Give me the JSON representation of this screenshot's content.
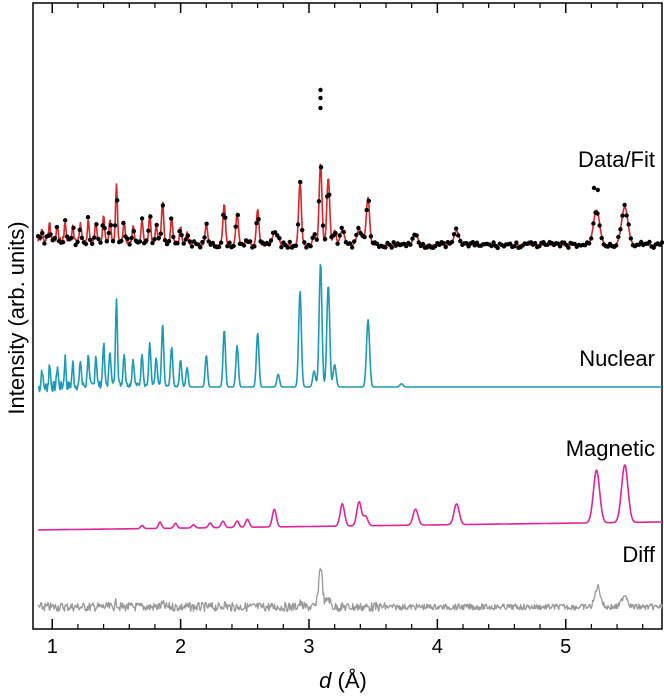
{
  "chart_data": {
    "type": "line",
    "xlabel_italic": "d",
    "xlabel_rest": " (Å)",
    "ylabel": "Intensity (arb. units)",
    "xlim": [
      0.85,
      5.75
    ],
    "x_ticks": [
      1,
      2,
      3,
      4,
      5
    ],
    "x_tick_labels": [
      "1",
      "2",
      "3",
      "4",
      "5"
    ],
    "y_ticks_visible": false,
    "colors": {
      "data": "#000000",
      "fit": "#d62728",
      "nuclear": "#1a9bb5",
      "magnetic": "#e0249a",
      "diff": "#999999"
    },
    "peaks": {
      "nuclear": [
        [
          0.92,
          0.12
        ],
        [
          0.98,
          0.15
        ],
        [
          1.04,
          0.13
        ],
        [
          1.1,
          0.18
        ],
        [
          1.16,
          0.14
        ],
        [
          1.22,
          0.16
        ],
        [
          1.28,
          0.2
        ],
        [
          1.34,
          0.19
        ],
        [
          1.4,
          0.26
        ],
        [
          1.45,
          0.22
        ],
        [
          1.5,
          0.55
        ],
        [
          1.56,
          0.2
        ],
        [
          1.63,
          0.16
        ],
        [
          1.7,
          0.2
        ],
        [
          1.76,
          0.27
        ],
        [
          1.81,
          0.17
        ],
        [
          1.86,
          0.39
        ],
        [
          1.93,
          0.25
        ],
        [
          2.0,
          0.17
        ],
        [
          2.05,
          0.12
        ],
        [
          2.2,
          0.2
        ],
        [
          2.34,
          0.36
        ],
        [
          2.44,
          0.26
        ],
        [
          2.6,
          0.34
        ],
        [
          2.76,
          0.08
        ],
        [
          2.93,
          0.6
        ],
        [
          3.04,
          0.1
        ],
        [
          3.09,
          0.78
        ],
        [
          3.15,
          0.64
        ],
        [
          3.2,
          0.14
        ],
        [
          3.46,
          0.42
        ],
        [
          3.72,
          0.02
        ]
      ],
      "magnetic": [
        [
          1.7,
          0.02
        ],
        [
          1.84,
          0.04
        ],
        [
          1.96,
          0.03
        ],
        [
          2.1,
          0.02
        ],
        [
          2.23,
          0.03
        ],
        [
          2.33,
          0.04
        ],
        [
          2.44,
          0.04
        ],
        [
          2.52,
          0.05
        ],
        [
          2.73,
          0.11
        ],
        [
          3.26,
          0.14
        ],
        [
          3.39,
          0.15
        ],
        [
          3.44,
          0.06
        ],
        [
          3.83,
          0.1
        ],
        [
          4.15,
          0.13
        ],
        [
          5.24,
          0.33
        ],
        [
          5.46,
          0.36
        ]
      ],
      "diff": [
        [
          1.5,
          0.05
        ],
        [
          1.86,
          0.03
        ],
        [
          2.34,
          0.03
        ],
        [
          2.93,
          0.04
        ],
        [
          3.09,
          0.46
        ],
        [
          3.15,
          0.1
        ],
        [
          5.25,
          0.23
        ],
        [
          5.46,
          0.14
        ]
      ]
    },
    "series": [
      {
        "name": "Data/Fit",
        "kind": "data+fit",
        "offset_label": "Data/Fit"
      },
      {
        "name": "Nuclear",
        "kind": "line"
      },
      {
        "name": "Magnetic",
        "kind": "line"
      },
      {
        "name": "Diff",
        "kind": "line"
      }
    ],
    "grid": false,
    "legend": "labels-right-of-each-curve"
  }
}
